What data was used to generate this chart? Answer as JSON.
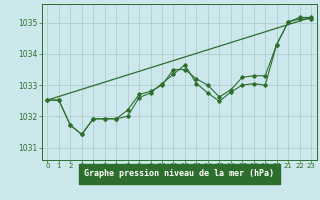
{
  "title": "Graphe pression niveau de la mer (hPa)",
  "bg_color": "#cce8ec",
  "plot_bg": "#cce8ec",
  "grid_color": "#b0cccc",
  "line_color": "#2d6e2d",
  "label_bg": "#2d6e2d",
  "label_fg": "#ffffff",
  "x_ticks": [
    0,
    1,
    2,
    3,
    4,
    5,
    6,
    7,
    8,
    9,
    10,
    11,
    12,
    13,
    14,
    15,
    16,
    17,
    18,
    19,
    20,
    21,
    22,
    23
  ],
  "ylim": [
    1030.6,
    1035.6
  ],
  "y_ticks": [
    1031,
    1032,
    1033,
    1034,
    1035
  ],
  "series1": [
    1032.52,
    1032.52,
    1031.72,
    1031.42,
    1031.92,
    1031.92,
    1031.92,
    1032.0,
    1032.6,
    1032.75,
    1033.05,
    1033.35,
    1033.65,
    1033.05,
    1032.75,
    1032.48,
    1032.78,
    1033.0,
    1033.05,
    1033.0,
    1034.3,
    1035.02,
    1035.12,
    1035.12
  ],
  "series2": [
    1032.52,
    1032.52,
    1031.72,
    1031.42,
    1031.92,
    1031.92,
    1031.92,
    1032.2,
    1032.7,
    1032.8,
    1033.0,
    1033.5,
    1033.5,
    1033.2,
    1033.0,
    1032.62,
    1032.85,
    1033.25,
    1033.3,
    1033.3,
    1034.3,
    1035.02,
    1035.17,
    1035.17
  ],
  "series3_x": [
    0,
    23
  ],
  "series3_y": [
    1032.52,
    1035.17
  ]
}
